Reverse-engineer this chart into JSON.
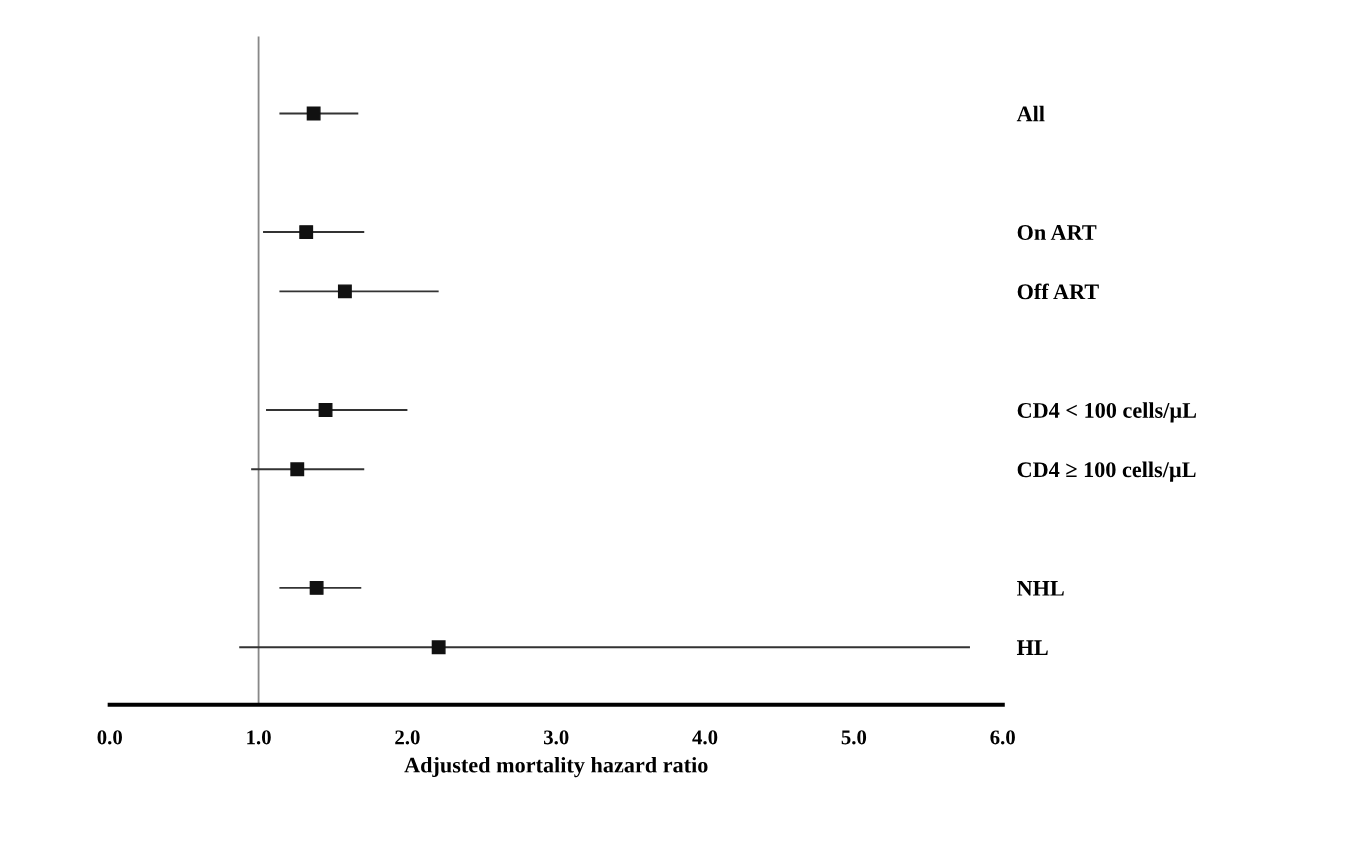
{
  "chart_data": {
    "type": "scatter",
    "orientation": "horizontal",
    "xlabel": "Adjusted mortality hazard ratio",
    "categories": [
      "All",
      null,
      "On ART",
      "Off ART",
      null,
      "CD4 < 100 cells/µL",
      "CD4 ≥ 100 cells/µL",
      null,
      "NHL",
      "HL"
    ],
    "values": [
      1.37,
      null,
      1.32,
      1.58,
      null,
      1.45,
      1.26,
      null,
      1.39,
      2.21
    ],
    "errors": [
      [
        1.14,
        1.67
      ],
      null,
      [
        1.03,
        1.71
      ],
      [
        1.14,
        2.21
      ],
      null,
      [
        1.05,
        2.0
      ],
      [
        0.95,
        1.71
      ],
      null,
      [
        1.14,
        1.69
      ],
      [
        0.87,
        5.78
      ]
    ],
    "color": "#111111",
    "marker": "square",
    "xlim": [
      0,
      6
    ],
    "xticks": [
      {
        "value": 0,
        "label": "0.0"
      },
      {
        "value": 1,
        "label": "1.0"
      },
      {
        "value": 2,
        "label": "2.0"
      },
      {
        "value": 3,
        "label": "3.0"
      },
      {
        "value": 4,
        "label": "4.0"
      },
      {
        "value": 5,
        "label": "5.0"
      },
      {
        "value": 6,
        "label": "6.0"
      }
    ],
    "ref_lines": [
      {
        "axis": "x",
        "value": 1,
        "color": "#888888"
      }
    ],
    "grid": false
  }
}
